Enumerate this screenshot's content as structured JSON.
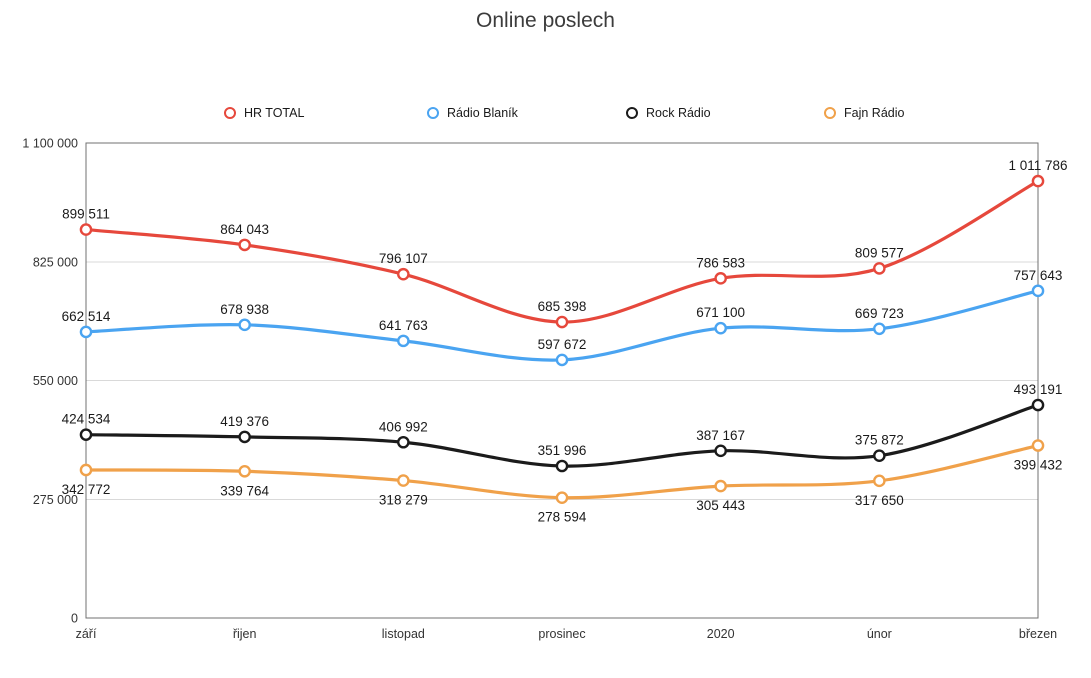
{
  "title": "Online poslech",
  "chart_data": {
    "type": "line",
    "smooth": true,
    "marker": "open-circle",
    "legend_position": "top",
    "grid": true,
    "categories": [
      "září",
      "řijen",
      "listopad",
      "prosinec",
      "2020",
      "únor",
      "březen"
    ],
    "series": [
      {
        "name": "HR TOTAL",
        "color": "#E6483C",
        "label_position": "above",
        "values": [
          899511,
          864043,
          796107,
          685398,
          786583,
          809577,
          1011786
        ]
      },
      {
        "name": "Rádio Blaník",
        "color": "#4AA4F1",
        "label_position": "above",
        "values": [
          662514,
          678938,
          641763,
          597672,
          671100,
          669723,
          757643
        ]
      },
      {
        "name": "Rock Rádio",
        "color": "#1B1B1B",
        "label_position": "above",
        "values": [
          424534,
          419376,
          406992,
          351996,
          387167,
          375872,
          493191
        ]
      },
      {
        "name": "Fajn Rádio",
        "color": "#F0A14A",
        "label_position": "below",
        "values": [
          342772,
          339764,
          318279,
          278594,
          305443,
          317650,
          399432
        ]
      }
    ],
    "y_axis": {
      "min": 0,
      "max": 1100000,
      "ticks": [
        0,
        275000,
        550000,
        825000,
        1100000
      ]
    }
  },
  "colors": {
    "frame": "#707070",
    "grid": "#D9D9D9",
    "tick_text": "#333333",
    "data_label_text": "#1A1A1A"
  }
}
